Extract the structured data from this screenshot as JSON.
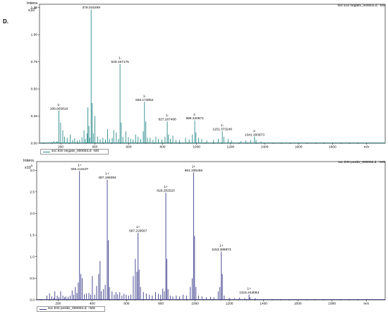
{
  "panel_label": "D.",
  "colors": {
    "negative_series": "#2b8a8a",
    "positive_series": "#3c3c8c",
    "axis": "#000000"
  },
  "chart_data": [
    {
      "type": "line",
      "title": "",
      "file_label": "soc ESI negativ_000003.d: -MS",
      "legend": "soc ESI negativ_000003.d: -MS",
      "y_axis_label": "Intens.",
      "y_axis_unit": "x10^5",
      "xlabel": "m/z",
      "xlim": [
        75,
        2110
      ],
      "ylim": [
        0,
        1.28
      ],
      "x_ticks": [
        200,
        400,
        600,
        800,
        1000,
        1200,
        1400,
        1600,
        1800,
        2000
      ],
      "x_tick_labels": [
        "200",
        "400",
        "600",
        "800",
        "1000",
        "1200",
        "1400",
        "1600",
        "1800",
        "m/z"
      ],
      "y_ticks": [
        0.0,
        0.25,
        0.5,
        0.75,
        1.0,
        1.25
      ],
      "y_tick_labels": [
        "0.00",
        "0.25",
        "0.50",
        "0.75",
        "1.00",
        "1.25"
      ],
      "peaks": [
        [
          134,
          0.008
        ],
        [
          148,
          0.012
        ],
        [
          160,
          0.02
        ],
        [
          175,
          0.018
        ],
        [
          181,
          0.015
        ],
        [
          189,
          0.3
        ],
        [
          199,
          0.19
        ],
        [
          212,
          0.12
        ],
        [
          222,
          0.06
        ],
        [
          238,
          0.05
        ],
        [
          256,
          0.08
        ],
        [
          270,
          0.03
        ],
        [
          282,
          0.045
        ],
        [
          297,
          0.025
        ],
        [
          311,
          0.03
        ],
        [
          325,
          0.055
        ],
        [
          337,
          0.12
        ],
        [
          345,
          0.04
        ],
        [
          355,
          0.09
        ],
        [
          360,
          0.33
        ],
        [
          366,
          0.16
        ],
        [
          371,
          0.05
        ],
        [
          379,
          1.23
        ],
        [
          385,
          0.37
        ],
        [
          392,
          0.09
        ],
        [
          401,
          0.25
        ],
        [
          417,
          0.06
        ],
        [
          432,
          0.035
        ],
        [
          448,
          0.05
        ],
        [
          463,
          0.035
        ],
        [
          476,
          0.13
        ],
        [
          487,
          0.04
        ],
        [
          503,
          0.05
        ],
        [
          512,
          0.12
        ],
        [
          527,
          0.1
        ],
        [
          540,
          0.04
        ],
        [
          549,
          0.73
        ],
        [
          556,
          0.19
        ],
        [
          566,
          0.06
        ],
        [
          583,
          0.11
        ],
        [
          598,
          0.055
        ],
        [
          612,
          0.04
        ],
        [
          626,
          0.035
        ],
        [
          641,
          0.08
        ],
        [
          655,
          0.06
        ],
        [
          671,
          0.04
        ],
        [
          686,
          0.11
        ],
        [
          693,
          0.38
        ],
        [
          701,
          0.2
        ],
        [
          711,
          0.05
        ],
        [
          726,
          0.05
        ],
        [
          743,
          0.03
        ],
        [
          760,
          0.06
        ],
        [
          775,
          0.04
        ],
        [
          796,
          0.035
        ],
        [
          814,
          0.06
        ],
        [
          827,
          0.2
        ],
        [
          834,
          0.08
        ],
        [
          845,
          0.04
        ],
        [
          860,
          0.07
        ],
        [
          878,
          0.03
        ],
        [
          900,
          0.03
        ],
        [
          935,
          0.05
        ],
        [
          956,
          0.035
        ],
        [
          975,
          0.08
        ],
        [
          989,
          0.21
        ],
        [
          996,
          0.1
        ],
        [
          1012,
          0.05
        ],
        [
          1030,
          0.04
        ],
        [
          1060,
          0.025
        ],
        [
          1100,
          0.03
        ],
        [
          1128,
          0.04
        ],
        [
          1151,
          0.11
        ],
        [
          1160,
          0.06
        ],
        [
          1185,
          0.04
        ],
        [
          1205,
          0.025
        ],
        [
          1260,
          0.02
        ],
        [
          1290,
          0.025
        ],
        [
          1318,
          0.03
        ],
        [
          1341,
          0.06
        ],
        [
          1350,
          0.03
        ],
        [
          1380,
          0.015
        ],
        [
          1420,
          0.008
        ],
        [
          1500,
          0.005
        ],
        [
          1600,
          0.004
        ],
        [
          1700,
          0.004
        ],
        [
          1800,
          0.003
        ],
        [
          1900,
          0.003
        ],
        [
          2000,
          0.002
        ]
      ],
      "peak_labels": [
        {
          "x": 379.015299,
          "y": 1.23,
          "charge": "",
          "text": "379.015299"
        },
        {
          "x": 549.167175,
          "y": 0.73,
          "charge": "1-",
          "text": "549.167175"
        },
        {
          "x": 693.173052,
          "y": 0.38,
          "charge": "1-",
          "text": "693.173052"
        },
        {
          "x": 189.003819,
          "y": 0.3,
          "charge": "1-",
          "text": "189.003819"
        },
        {
          "x": 827.267406,
          "y": 0.2,
          "charge": "1-",
          "text": "827.267406"
        },
        {
          "x": 989.320871,
          "y": 0.21,
          "charge": "1-",
          "text": "989.320871"
        },
        {
          "x": 1151.373246,
          "y": 0.11,
          "charge": "1-",
          "text": "1151.373246"
        },
        {
          "x": 1341.383873,
          "y": 0.06,
          "charge": "1-",
          "text": "1341.383873"
        }
      ]
    },
    {
      "type": "line",
      "title": "",
      "file_label": "soc ESI positiv_000002.d: +MS",
      "legend": "soc ESI positiv_000002.d: +MS",
      "y_axis_label": "Intens.",
      "y_axis_unit": "x10^5",
      "xlabel": "m/z",
      "xlim": [
        75,
        2110
      ],
      "ylim": [
        0,
        3.2
      ],
      "x_ticks": [
        200,
        400,
        600,
        800,
        1000,
        1200,
        1400,
        1600,
        1800,
        2000
      ],
      "x_tick_labels": [
        "200",
        "400",
        "600",
        "800",
        "1000",
        "1200",
        "1400",
        "1600",
        "1800",
        "m/z"
      ],
      "y_ticks": [
        0.0,
        0.5,
        1.0,
        1.5,
        2.0,
        2.5,
        3.0
      ],
      "y_tick_labels": [
        "0.0",
        "0.5",
        "1.0",
        "1.5",
        "2.0",
        "2.5",
        "3.0"
      ],
      "peaks": [
        [
          135,
          0.1
        ],
        [
          150,
          0.15
        ],
        [
          163,
          0.08
        ],
        [
          175,
          0.05
        ],
        [
          181,
          0.2
        ],
        [
          195,
          0.1
        ],
        [
          205,
          0.06
        ],
        [
          215,
          0.2
        ],
        [
          228,
          0.1
        ],
        [
          238,
          0.06
        ],
        [
          245,
          0.08
        ],
        [
          258,
          0.07
        ],
        [
          270,
          0.1
        ],
        [
          282,
          0.22
        ],
        [
          291,
          0.12
        ],
        [
          301,
          0.3
        ],
        [
          310,
          0.16
        ],
        [
          318,
          0.4
        ],
        [
          325,
          2.98
        ],
        [
          333,
          0.6
        ],
        [
          341,
          0.5
        ],
        [
          353,
          0.13
        ],
        [
          365,
          0.15
        ],
        [
          380,
          0.16
        ],
        [
          390,
          0.12
        ],
        [
          400,
          0.55
        ],
        [
          413,
          0.12
        ],
        [
          425,
          0.32
        ],
        [
          437,
          0.6
        ],
        [
          445,
          0.9
        ],
        [
          453,
          0.2
        ],
        [
          465,
          0.25
        ],
        [
          475,
          0.35
        ],
        [
          487,
          2.78
        ],
        [
          493,
          1.38
        ],
        [
          500,
          0.3
        ],
        [
          515,
          0.2
        ],
        [
          528,
          0.12
        ],
        [
          538,
          0.18
        ],
        [
          548,
          0.13
        ],
        [
          560,
          0.18
        ],
        [
          573,
          0.1
        ],
        [
          585,
          0.14
        ],
        [
          598,
          0.12
        ],
        [
          612,
          0.1
        ],
        [
          625,
          0.12
        ],
        [
          639,
          0.55
        ],
        [
          651,
          0.95
        ],
        [
          660,
          0.65
        ],
        [
          667,
          1.55
        ],
        [
          673,
          0.7
        ],
        [
          681,
          0.3
        ],
        [
          698,
          0.18
        ],
        [
          715,
          0.15
        ],
        [
          733,
          0.12
        ],
        [
          750,
          0.1
        ],
        [
          769,
          0.18
        ],
        [
          786,
          0.14
        ],
        [
          799,
          0.12
        ],
        [
          811,
          0.26
        ],
        [
          820,
          0.2
        ],
        [
          829,
          2.48
        ],
        [
          835,
          0.95
        ],
        [
          842,
          0.25
        ],
        [
          855,
          0.1
        ],
        [
          870,
          0.08
        ],
        [
          890,
          0.1
        ],
        [
          910,
          0.08
        ],
        [
          930,
          0.12
        ],
        [
          950,
          0.1
        ],
        [
          972,
          0.3
        ],
        [
          983,
          0.5
        ],
        [
          991,
          2.95
        ],
        [
          997,
          1.48
        ],
        [
          1005,
          0.3
        ],
        [
          1020,
          0.1
        ],
        [
          1040,
          0.08
        ],
        [
          1065,
          0.06
        ],
        [
          1090,
          0.07
        ],
        [
          1110,
          0.06
        ],
        [
          1135,
          0.2
        ],
        [
          1145,
          0.3
        ],
        [
          1153,
          1.12
        ],
        [
          1159,
          0.6
        ],
        [
          1170,
          0.1
        ],
        [
          1200,
          0.05
        ],
        [
          1230,
          0.04
        ],
        [
          1260,
          0.05
        ],
        [
          1290,
          0.04
        ],
        [
          1315,
          0.12
        ],
        [
          1320,
          0.06
        ],
        [
          1350,
          0.04
        ],
        [
          1400,
          0.02
        ],
        [
          1450,
          0.01
        ],
        [
          1550,
          0.01
        ],
        [
          1650,
          0.008
        ],
        [
          1750,
          0.006
        ],
        [
          1850,
          0.005
        ],
        [
          1950,
          0.004
        ]
      ],
      "peak_labels": [
        {
          "x": 325.113107,
          "y": 2.98,
          "charge": "1+",
          "text": "325.113107"
        },
        {
          "x": 991.335456,
          "y": 2.95,
          "charge": "1+",
          "text": "991.335456"
        },
        {
          "x": 487.166094,
          "y": 2.78,
          "charge": "1+",
          "text": "487.166094"
        },
        {
          "x": 829.28252,
          "y": 2.48,
          "charge": "1+",
          "text": "829.282520"
        },
        {
          "x": 667.229567,
          "y": 1.55,
          "charge": "1+",
          "text": "667.229567"
        },
        {
          "x": 1153.388973,
          "y": 1.12,
          "charge": "1+",
          "text": "1153.388973"
        },
        {
          "x": 1315.443083,
          "y": 0.12,
          "charge": "1+",
          "text": "1315.443083"
        }
      ]
    }
  ]
}
